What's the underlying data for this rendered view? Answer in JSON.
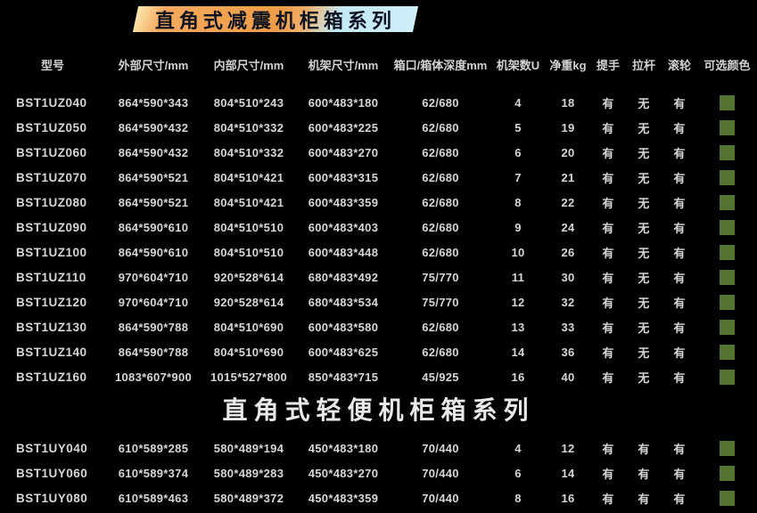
{
  "colors": {
    "background": "#000000",
    "text": "#d6d6d6",
    "swatch_green": "#527430",
    "banner_orange": "#ee9c46",
    "banner_cream": "#fce8b0",
    "banner_blue": "#c9ecf7",
    "banner_text": "#0d1220"
  },
  "table_columns": [
    {
      "key": "model",
      "label": "型号"
    },
    {
      "key": "outer_size",
      "label": "外部尺寸/mm"
    },
    {
      "key": "inner_size",
      "label": "内部尺寸/mm"
    },
    {
      "key": "rack_size",
      "label": "机架尺寸/mm"
    },
    {
      "key": "lid_body_depth",
      "label": "箱口/箱体深度mm"
    },
    {
      "key": "rack_units",
      "label": "机架数U"
    },
    {
      "key": "net_weight",
      "label": "净重kg"
    },
    {
      "key": "handle",
      "label": "提手"
    },
    {
      "key": "trolley",
      "label": "拉杆"
    },
    {
      "key": "wheels",
      "label": "滚轮"
    },
    {
      "key": "color_options",
      "label": "可选颜色"
    }
  ],
  "section1": {
    "title": "直角式减震机柜箱系列",
    "rows": [
      [
        "BST1UZ040",
        "864*590*343",
        "804*510*243",
        "600*483*180",
        "62/680",
        "4",
        "18",
        "有",
        "无",
        "有",
        "green"
      ],
      [
        "BST1UZ050",
        "864*590*432",
        "804*510*332",
        "600*483*225",
        "62/680",
        "5",
        "19",
        "有",
        "无",
        "有",
        "green"
      ],
      [
        "BST1UZ060",
        "864*590*432",
        "804*510*332",
        "600*483*270",
        "62/680",
        "6",
        "20",
        "有",
        "无",
        "有",
        "green"
      ],
      [
        "BST1UZ070",
        "864*590*521",
        "804*510*421",
        "600*483*315",
        "62/680",
        "7",
        "21",
        "有",
        "无",
        "有",
        "green"
      ],
      [
        "BST1UZ080",
        "864*590*521",
        "804*510*421",
        "600*483*359",
        "62/680",
        "8",
        "22",
        "有",
        "无",
        "有",
        "green"
      ],
      [
        "BST1UZ090",
        "864*590*610",
        "804*510*510",
        "600*483*403",
        "62/680",
        "9",
        "24",
        "有",
        "无",
        "有",
        "green"
      ],
      [
        "BST1UZ100",
        "864*590*610",
        "804*510*510",
        "600*483*448",
        "62/680",
        "10",
        "26",
        "有",
        "无",
        "有",
        "green"
      ],
      [
        "BST1UZ110",
        "970*604*710",
        "920*528*614",
        "680*483*492",
        "75/770",
        "11",
        "30",
        "有",
        "无",
        "有",
        "green"
      ],
      [
        "BST1UZ120",
        "970*604*710",
        "920*528*614",
        "680*483*534",
        "75/770",
        "12",
        "32",
        "有",
        "无",
        "有",
        "green"
      ],
      [
        "BST1UZ130",
        "864*590*788",
        "804*510*690",
        "600*483*580",
        "62/680",
        "13",
        "33",
        "有",
        "无",
        "有",
        "green"
      ],
      [
        "BST1UZ140",
        "864*590*788",
        "804*510*690",
        "600*483*625",
        "62/680",
        "14",
        "36",
        "有",
        "无",
        "有",
        "green"
      ],
      [
        "BST1UZ160",
        "1083*607*900",
        "1015*527*800",
        "850*483*715",
        "45/925",
        "16",
        "40",
        "有",
        "无",
        "有",
        "green"
      ]
    ]
  },
  "section2": {
    "title": "直角式轻便机柜箱系列",
    "rows": [
      [
        "BST1UY040",
        "610*589*285",
        "580*489*194",
        "450*483*180",
        "70/440",
        "4",
        "12",
        "有",
        "有",
        "有",
        "green"
      ],
      [
        "BST1UY060",
        "610*589*374",
        "580*489*283",
        "450*483*270",
        "70/440",
        "6",
        "14",
        "有",
        "有",
        "有",
        "green"
      ],
      [
        "BST1UY080",
        "610*589*463",
        "580*489*372",
        "450*483*359",
        "70/440",
        "8",
        "16",
        "有",
        "有",
        "有",
        "green"
      ]
    ]
  }
}
